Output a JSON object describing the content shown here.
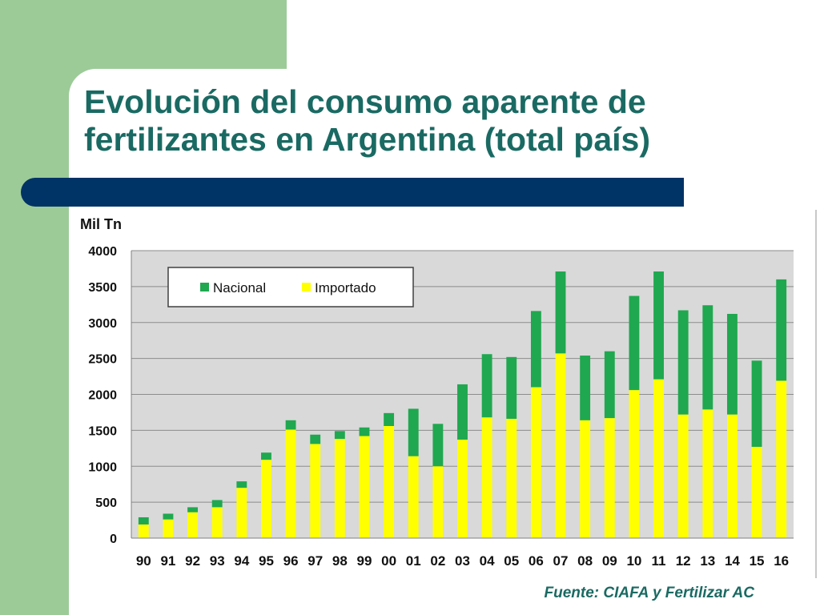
{
  "slide": {
    "title": "Evolución del consumo aparente de fertilizantes en Argentina (total país)",
    "source": "Fuente: CIAFA y Fertilizar AC",
    "colors": {
      "accent_bar": "#003366",
      "side_green": "#9ccb98",
      "title_text": "#1a6a63"
    }
  },
  "chart_data": {
    "type": "bar",
    "stacked": true,
    "ylabel": "Mil Tn",
    "ylim": [
      0,
      4000
    ],
    "yticks": [
      0,
      500,
      1000,
      1500,
      2000,
      2500,
      3000,
      3500,
      4000
    ],
    "grid": true,
    "legend_position": "top-left",
    "categories": [
      "90",
      "91",
      "92",
      "93",
      "94",
      "95",
      "96",
      "97",
      "98",
      "99",
      "00",
      "01",
      "02",
      "03",
      "04",
      "05",
      "06",
      "07",
      "08",
      "09",
      "10",
      "11",
      "12",
      "13",
      "14",
      "15",
      "16"
    ],
    "series": [
      {
        "name": "Importado",
        "color": "#ffff00",
        "values": [
          190,
          260,
          360,
          430,
          700,
          1090,
          1510,
          1310,
          1380,
          1420,
          1560,
          1140,
          1000,
          1370,
          1680,
          1660,
          2100,
          2570,
          1640,
          1670,
          2060,
          2210,
          1720,
          1790,
          1720,
          1270,
          2190
        ]
      },
      {
        "name": "Nacional",
        "color": "#1fa84f",
        "values": [
          100,
          80,
          70,
          100,
          90,
          100,
          130,
          130,
          110,
          120,
          180,
          660,
          590,
          770,
          880,
          860,
          1060,
          1140,
          900,
          930,
          1310,
          1500,
          1450,
          1450,
          1400,
          1200,
          1410
        ]
      }
    ]
  }
}
